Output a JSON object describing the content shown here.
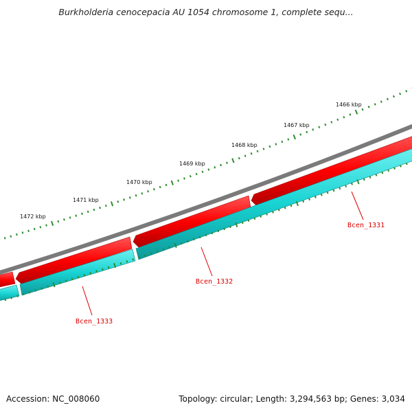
{
  "title": "Burkholderia cenocepacia AU 1054 chromosome 1, complete sequ...",
  "accession": "Accession: NC_008060",
  "summary": "Topology: circular; Length: 3,294,563 bp; Genes: 3,034",
  "colors": {
    "backbone": "#7a7a7a",
    "forward_gene": "#ff0000",
    "reverse_gene": "#19d3d3",
    "ticks": "#2e8b2e",
    "gene_label": "#dd0000"
  },
  "kbp_labels": [
    "1466 kbp",
    "1467 kbp",
    "1468 kbp",
    "1469 kbp",
    "1470 kbp",
    "1471 kbp",
    "1472 kbp"
  ],
  "genes": [
    {
      "locus": "Bcen_1331"
    },
    {
      "locus": "Bcen_1332"
    },
    {
      "locus": "Bcen_1333"
    }
  ]
}
